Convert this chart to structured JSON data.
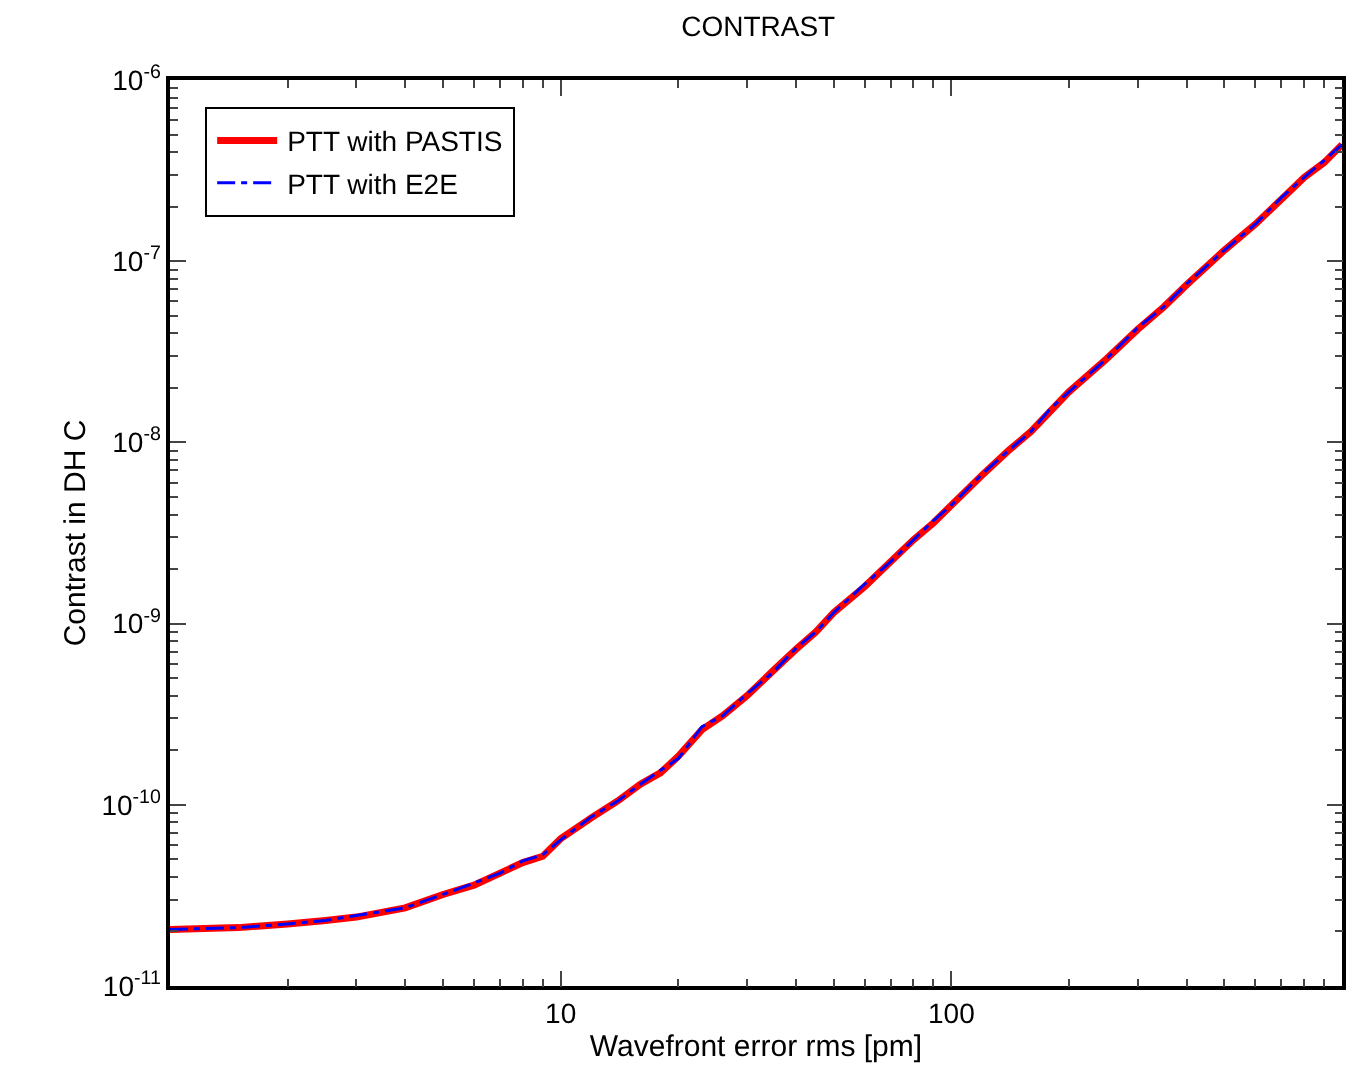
{
  "chart_data": {
    "type": "line",
    "title": "CONTRAST",
    "xlabel": "Wavefront error rms [pm]",
    "ylabel": "Contrast in DH C",
    "log": "xy",
    "xlim": [
      1,
      1000
    ],
    "ylim": [
      1e-11,
      1e-06
    ],
    "xticks": [
      {
        "value": 1,
        "label": null
      },
      10,
      100,
      {
        "value": 1000,
        "label": null
      }
    ],
    "yticks": [
      {
        "value": 1e-11,
        "label": "10$^{-11}$"
      },
      {
        "value": 1e-10,
        "label": "10$^{-10}$"
      },
      {
        "value": 1e-09,
        "label": "10$^{-9}$"
      },
      {
        "value": 1e-08,
        "label": "10$^{-8}$"
      },
      {
        "value": 1e-07,
        "label": "10$^{-7}$"
      },
      {
        "value": 1e-06,
        "label": "10$^{-6}$"
      }
    ],
    "legend": "top left",
    "marker": "none",
    "x": [
      1,
      1.5,
      2,
      2.5,
      3,
      4,
      5,
      6,
      7,
      8,
      9,
      10,
      12,
      14,
      16,
      18,
      20,
      23,
      26,
      30,
      35,
      40,
      45,
      50,
      60,
      70,
      80,
      90,
      100,
      120,
      140,
      160,
      180,
      200,
      250,
      300,
      350,
      400,
      500,
      600,
      700,
      800,
      900,
      1000
    ],
    "series": [
      {
        "name": "PTT with PASTIS",
        "color": "#ff0000",
        "line_style": "solid",
        "values": [
          2.05e-11,
          2.1e-11,
          2.2e-11,
          2.3e-11,
          2.4e-11,
          2.7e-11,
          3.2e-11,
          3.6e-11,
          4.2e-11,
          4.8e-11,
          5.2e-11,
          6.5e-11,
          8.5e-11,
          1.05e-10,
          1.3e-10,
          1.5e-10,
          1.85e-10,
          2.6e-10,
          3.1e-10,
          4e-10,
          5.5e-10,
          7.2e-10,
          9e-10,
          1.15e-09,
          1.6e-09,
          2.2e-09,
          2.9e-09,
          3.6e-09,
          4.5e-09,
          6.6e-09,
          9e-09,
          1.15e-08,
          1.5e-08,
          1.9e-08,
          2.9e-08,
          4.2e-08,
          5.6e-08,
          7.4e-08,
          1.15e-07,
          1.6e-07,
          2.2e-07,
          2.9e-07,
          3.5e-07,
          4.4e-07
        ]
      },
      {
        "name": "PTT with E2E",
        "color": "#0000ff",
        "line_style": "dashdot",
        "values": [
          2.05e-11,
          2.1e-11,
          2.2e-11,
          2.3e-11,
          2.45e-11,
          2.7e-11,
          3.2e-11,
          3.7e-11,
          4.2e-11,
          4.9e-11,
          5.3e-11,
          6.4e-11,
          8.6e-11,
          1.05e-10,
          1.3e-10,
          1.55e-10,
          1.8e-10,
          2.7e-10,
          3.1e-10,
          4.1e-10,
          5.4e-10,
          7.3e-10,
          9e-10,
          1.15e-09,
          1.65e-09,
          2.2e-09,
          2.9e-09,
          3.7e-09,
          4.5e-09,
          6.7e-09,
          9e-09,
          1.15e-08,
          1.55e-08,
          1.9e-08,
          2.9e-08,
          4.3e-08,
          5.6e-08,
          7.5e-08,
          1.15e-07,
          1.6e-07,
          2.25e-07,
          2.9e-07,
          3.6e-07,
          4.4e-07
        ]
      }
    ]
  }
}
